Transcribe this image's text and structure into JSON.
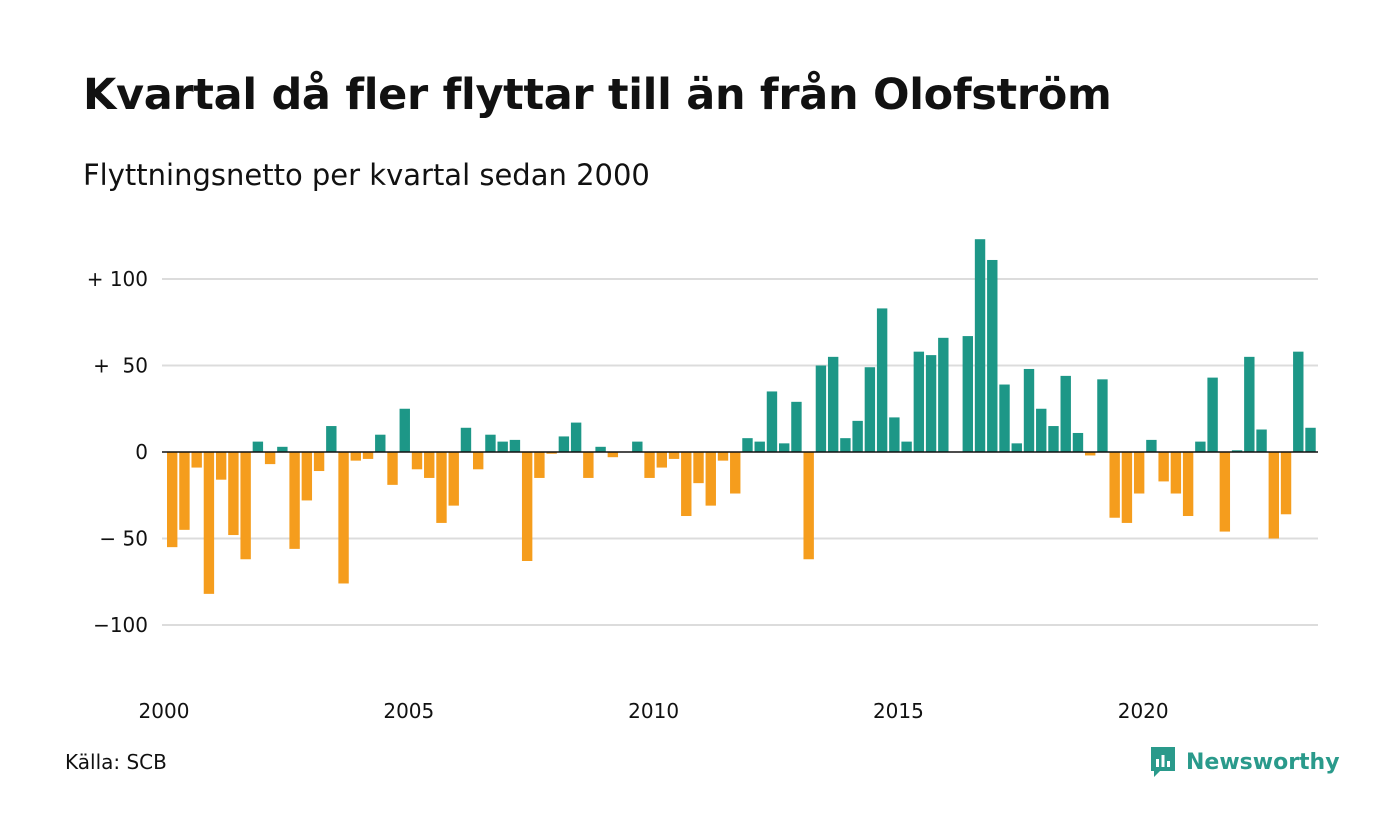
{
  "title": "Kvartal då fler flyttar till än från Olofström",
  "subtitle": "Flyttningsnetto per kvartal sedan 2000",
  "source": "Källa: SCB",
  "brand": "Newsworthy",
  "colors": {
    "positive": "#1d9787",
    "negative": "#f59d1d",
    "grid": "#dcdcdc",
    "brand": "#2a9a8b"
  },
  "chart_data": {
    "type": "bar",
    "title": "Kvartal då fler flyttar till än från Olofström",
    "subtitle": "Flyttningsnetto per kvartal sedan 2000",
    "xlabel": "",
    "ylabel": "",
    "ylim": [
      -115,
      130
    ],
    "yticks": [
      {
        "value": 100,
        "label": "+ 100"
      },
      {
        "value": 50,
        "label": "+  50"
      },
      {
        "value": 0,
        "label": "0"
      },
      {
        "value": -50,
        "label": "− 50"
      },
      {
        "value": -100,
        "label": "−100"
      }
    ],
    "xticks": [
      "2000",
      "2005",
      "2010",
      "2015",
      "2020"
    ],
    "start_year": 2000,
    "grid": true,
    "legend": false,
    "values": [
      -55,
      -45,
      -9,
      -82,
      -16,
      -48,
      -62,
      6,
      -7,
      3,
      -56,
      -28,
      -11,
      15,
      -76,
      -5,
      -4,
      10,
      -19,
      25,
      -10,
      -15,
      -41,
      -31,
      14,
      -10,
      10,
      6,
      7,
      -63,
      -15,
      -1,
      9,
      17,
      -15,
      3,
      -3,
      0,
      6,
      -15,
      -9,
      -4,
      -37,
      -18,
      -31,
      -5,
      -24,
      8,
      6,
      35,
      5,
      29,
      -62,
      50,
      55,
      8,
      18,
      49,
      83,
      20,
      6,
      58,
      56,
      66,
      0,
      67,
      123,
      111,
      39,
      5,
      48,
      25,
      15,
      44,
      11,
      -2,
      42,
      -38,
      -41,
      -24,
      7,
      -17,
      -24,
      -37,
      6,
      43,
      -46,
      1,
      55,
      13,
      -50,
      -36,
      58,
      14
    ]
  }
}
